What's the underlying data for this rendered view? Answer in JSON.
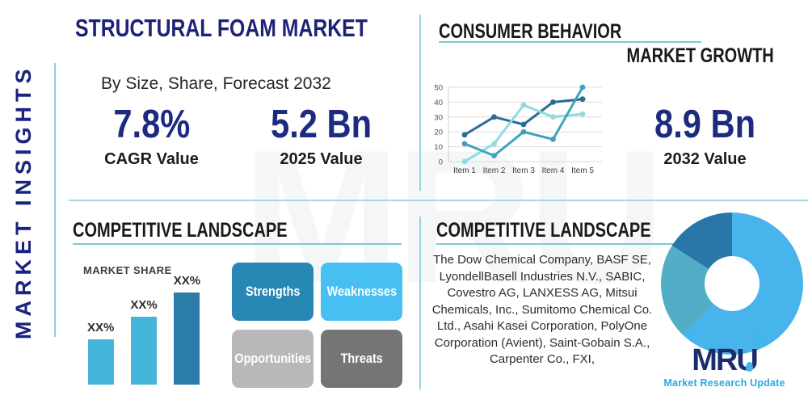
{
  "colors": {
    "navy": "#1d2b7f",
    "title_navy": "#1c2276",
    "heading_black": "#191919",
    "teal_rule": "#7cc7d2",
    "divider_blue": "#abd4e4",
    "logo_navy": "#1c2d6e",
    "logo_blue": "#2aa9e0"
  },
  "sidebar": {
    "label": "MARKET INSIGHTS"
  },
  "header": {
    "title": "STRUCTURAL FOAM MARKET",
    "subtitle": "By Size, Share, Forecast 2032"
  },
  "stats": {
    "cagr": {
      "value": "7.8%",
      "label": "CAGR Value"
    },
    "v2025": {
      "value": "5.2 Bn",
      "label": "2025 Value"
    },
    "v2032": {
      "value": "8.9 Bn",
      "label": "2032 Value"
    }
  },
  "sections": {
    "consumer_behavior": {
      "title": "CONSUMER BEHAVIOR",
      "subtitle": "MARKET GROWTH"
    },
    "competitive_left": {
      "title": "COMPETITIVE LANDSCAPE"
    },
    "competitive_right": {
      "title": "COMPETITIVE LANDSCAPE"
    }
  },
  "swot": [
    {
      "label": "Strengths",
      "color": "#2787b5"
    },
    {
      "label": "Weaknesses",
      "color": "#47bff2"
    },
    {
      "label": "Opportunities",
      "color": "#b8b8b8"
    },
    {
      "label": "Threats",
      "color": "#757575"
    }
  ],
  "companies_text": "The Dow Chemical Company, BASF SE, LyondellBasell Industries N.V., SABIC, Covestro AG, LANXESS AG, Mitsui Chemicals, Inc., Sumitomo Chemical Co. Ltd., Asahi Kasei Corporation, PolyOne Corporation (Avient), Saint-Gobain S.A., Carpenter Co., FXI,",
  "logo": {
    "text": "MRU",
    "tagline": "Market Research Update"
  },
  "watermark": "MRU",
  "chart_data": [
    {
      "type": "line",
      "title": "",
      "categories": [
        "Item 1",
        "Item 2",
        "Item 3",
        "Item 4",
        "Item 5"
      ],
      "series": [
        {
          "name": "series-dark-blue",
          "color": "#2b6c96",
          "values": [
            18,
            30,
            25,
            40,
            42
          ]
        },
        {
          "name": "series-teal",
          "color": "#3fa2bd",
          "values": [
            12,
            4,
            20,
            15,
            50
          ]
        },
        {
          "name": "series-light-cyan",
          "color": "#8edce2",
          "values": [
            0,
            12,
            38,
            30,
            32
          ]
        }
      ],
      "ylim": [
        0,
        50
      ],
      "yticks": [
        0,
        10,
        20,
        30,
        40,
        50
      ],
      "grid": true,
      "legend": "none"
    },
    {
      "type": "bar",
      "title": "MARKET SHARE",
      "categories": [
        "XX%",
        "XX%",
        "XX%"
      ],
      "values": [
        56,
        84,
        114
      ],
      "unit": "px",
      "colors": [
        "#44b5d8",
        "#44b5d8",
        "#2b7ca9"
      ],
      "xlabel": "",
      "ylabel": ""
    },
    {
      "type": "donut",
      "segments": [
        {
          "name": "primary",
          "value": 62,
          "color": "#47b4ec"
        },
        {
          "name": "secondary",
          "value": 22,
          "color": "#52aec6"
        },
        {
          "name": "tertiary",
          "value": 16,
          "color": "#2a76a8"
        }
      ]
    }
  ]
}
